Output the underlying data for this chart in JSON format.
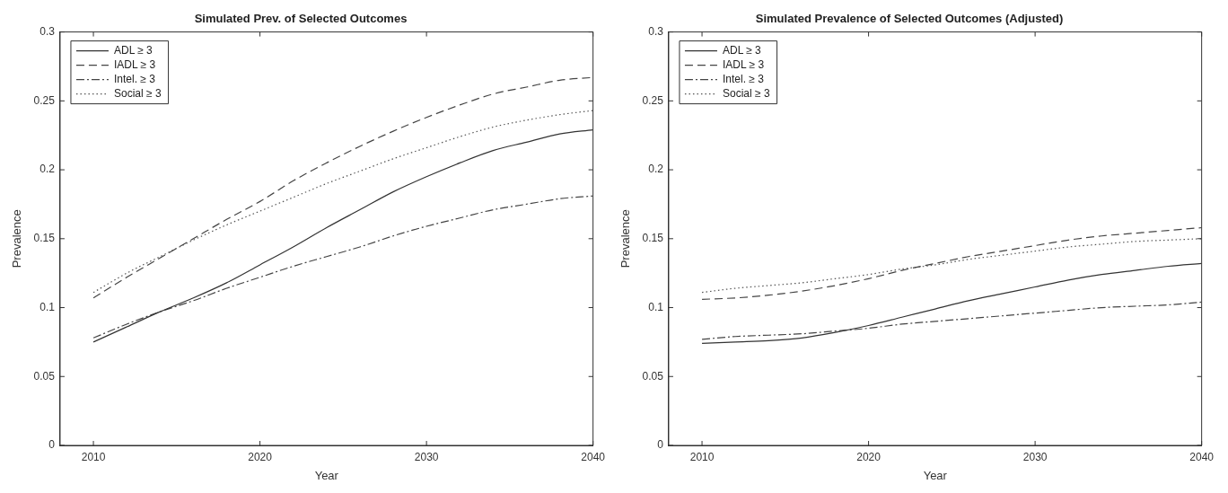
{
  "chart_data": [
    {
      "type": "line",
      "title": "Simulated Prev. of Selected Outcomes",
      "xlabel": "Year",
      "ylabel": "Prevalence",
      "x": [
        2010,
        2012,
        2014,
        2016,
        2018,
        2020,
        2022,
        2024,
        2026,
        2028,
        2030,
        2032,
        2034,
        2036,
        2038,
        2040
      ],
      "xlim": [
        2008,
        2040
      ],
      "xticks": [
        2010,
        2020,
        2030,
        2040
      ],
      "ylim": [
        0,
        0.3
      ],
      "yticks": [
        0,
        0.05,
        0.1,
        0.15,
        0.2,
        0.25,
        0.3
      ],
      "grid": false,
      "legend": "top left",
      "marker": "none",
      "series": [
        {
          "name": "ADL ≥ 3",
          "color": "#333333",
          "line_style": "solid",
          "values": [
            0.075,
            0.086,
            0.097,
            0.107,
            0.118,
            0.131,
            0.144,
            0.158,
            0.171,
            0.184,
            0.195,
            0.205,
            0.214,
            0.22,
            0.226,
            0.229
          ]
        },
        {
          "name": "IADL ≥ 3",
          "color": "#444444",
          "line_style": "dashed",
          "values": [
            0.107,
            0.122,
            0.136,
            0.15,
            0.164,
            0.177,
            0.192,
            0.205,
            0.217,
            0.228,
            0.238,
            0.247,
            0.255,
            0.26,
            0.265,
            0.267
          ]
        },
        {
          "name": "Intel. ≥ 3",
          "color": "#444444",
          "line_style": "dashdot",
          "values": [
            0.078,
            0.088,
            0.097,
            0.105,
            0.114,
            0.122,
            0.13,
            0.137,
            0.144,
            0.152,
            0.159,
            0.165,
            0.171,
            0.175,
            0.179,
            0.181
          ]
        },
        {
          "name": "Social ≥ 3",
          "color": "#555555",
          "line_style": "dotted",
          "values": [
            0.111,
            0.125,
            0.137,
            0.149,
            0.16,
            0.17,
            0.18,
            0.19,
            0.199,
            0.208,
            0.216,
            0.224,
            0.231,
            0.236,
            0.24,
            0.243
          ]
        }
      ]
    },
    {
      "type": "line",
      "title": "Simulated Prevalence of Selected Outcomes (Adjusted)",
      "xlabel": "Year",
      "ylabel": "Prevalence",
      "x": [
        2010,
        2012,
        2014,
        2016,
        2018,
        2020,
        2022,
        2024,
        2026,
        2028,
        2030,
        2032,
        2034,
        2036,
        2038,
        2040
      ],
      "xlim": [
        2008,
        2040
      ],
      "xticks": [
        2010,
        2020,
        2030,
        2040
      ],
      "ylim": [
        0,
        0.3
      ],
      "yticks": [
        0,
        0.05,
        0.1,
        0.15,
        0.2,
        0.25,
        0.3
      ],
      "grid": false,
      "legend": "top left",
      "marker": "none",
      "series": [
        {
          "name": "ADL ≥ 3",
          "color": "#333333",
          "line_style": "solid",
          "values": [
            0.074,
            0.075,
            0.076,
            0.078,
            0.082,
            0.087,
            0.093,
            0.099,
            0.105,
            0.11,
            0.115,
            0.12,
            0.124,
            0.127,
            0.13,
            0.132
          ]
        },
        {
          "name": "IADL ≥ 3",
          "color": "#444444",
          "line_style": "dashed",
          "values": [
            0.106,
            0.107,
            0.109,
            0.112,
            0.116,
            0.121,
            0.127,
            0.132,
            0.137,
            0.141,
            0.145,
            0.149,
            0.152,
            0.154,
            0.156,
            0.158
          ]
        },
        {
          "name": "Intel. ≥ 3",
          "color": "#444444",
          "line_style": "dashdot",
          "values": [
            0.077,
            0.079,
            0.08,
            0.081,
            0.083,
            0.085,
            0.088,
            0.09,
            0.092,
            0.094,
            0.096,
            0.098,
            0.1,
            0.101,
            0.102,
            0.104
          ]
        },
        {
          "name": "Social ≥ 3",
          "color": "#555555",
          "line_style": "dotted",
          "values": [
            0.111,
            0.114,
            0.116,
            0.118,
            0.121,
            0.124,
            0.128,
            0.131,
            0.135,
            0.138,
            0.141,
            0.144,
            0.146,
            0.148,
            0.149,
            0.15
          ]
        }
      ]
    }
  ]
}
